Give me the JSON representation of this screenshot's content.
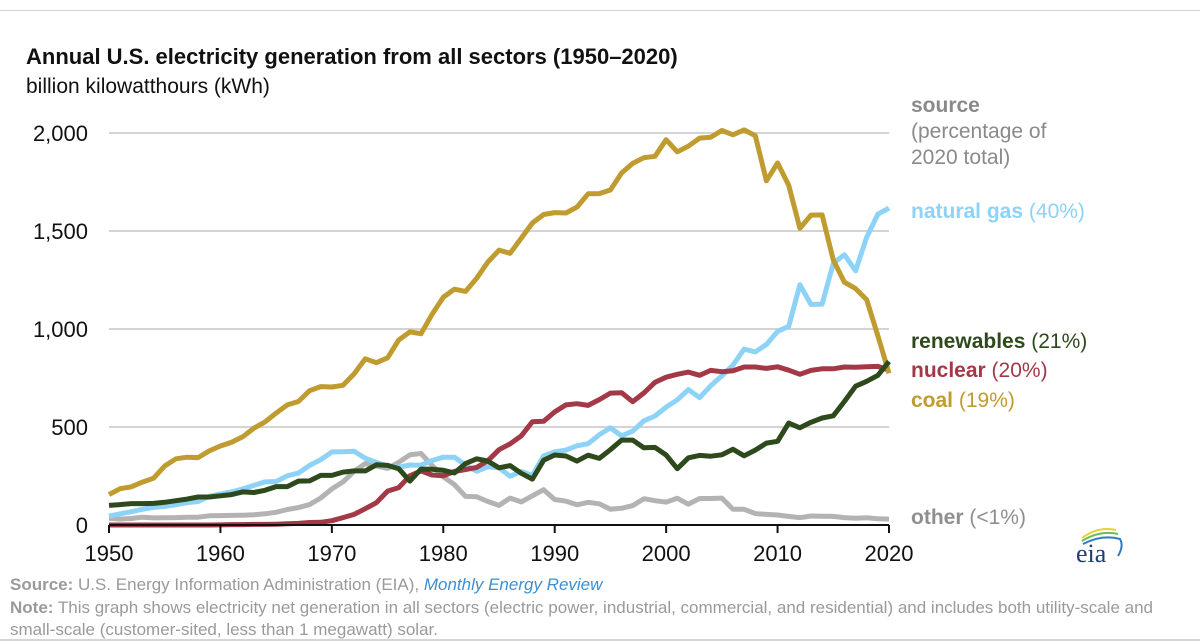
{
  "chart_data": {
    "type": "line",
    "title": "Annual U.S. electricity generation from all sectors (1950–2020)",
    "ylabel": "billion kilowatthours (kWh)",
    "xlabel": "",
    "xlim": [
      1950,
      2020
    ],
    "ylim": [
      0,
      2000
    ],
    "x_ticks": [
      1950,
      1960,
      1970,
      1980,
      1990,
      2000,
      2010,
      2020
    ],
    "y_ticks": [
      0,
      500,
      1000,
      1500,
      2000
    ],
    "y_tick_labels": [
      "0",
      "500",
      "1,000",
      "1,500",
      "2,000"
    ],
    "grid": true,
    "legend_title": "source",
    "legend_subtitle_1": "(percentage of",
    "legend_subtitle_2": "2020 total)",
    "legend_placement": "right",
    "series": [
      {
        "name": "coal",
        "share": "(19%)",
        "color": "#bf9b30",
        "values": [
          155,
          185,
          195,
          219,
          239,
          301,
          338,
          346,
          344,
          378,
          403,
          422,
          450,
          494,
          526,
          571,
          613,
          630,
          685,
          706,
          704,
          713,
          771,
          848,
          828,
          853,
          944,
          985,
          976,
          1075,
          1162,
          1203,
          1192,
          1259,
          1342,
          1402,
          1386,
          1464,
          1541,
          1584,
          1594,
          1592,
          1622,
          1690,
          1691,
          1709,
          1796,
          1845,
          1874,
          1881,
          1966,
          1904,
          1933,
          1974,
          1978,
          2013,
          1991,
          2016,
          1986,
          1756,
          1847,
          1733,
          1514,
          1581,
          1582,
          1352,
          1239,
          1206,
          1149,
          965,
          774
        ]
      },
      {
        "name": "natural gas",
        "share": "(40%)",
        "color": "#8dd3f7",
        "values": [
          45,
          57,
          68,
          80,
          90,
          95,
          104,
          114,
          120,
          147,
          158,
          169,
          184,
          202,
          220,
          222,
          251,
          265,
          304,
          333,
          373,
          374,
          376,
          341,
          320,
          300,
          295,
          306,
          305,
          329,
          346,
          346,
          305,
          274,
          297,
          292,
          249,
          273,
          253,
          352,
          373,
          382,
          404,
          415,
          460,
          496,
          455,
          479,
          531,
          556,
          601,
          639,
          691,
          650,
          710,
          761,
          816,
          897,
          883,
          921,
          988,
          1014,
          1226,
          1125,
          1127,
          1335,
          1379,
          1297,
          1469,
          1586,
          1617
        ]
      },
      {
        "name": "nuclear",
        "share": "(20%)",
        "color": "#a33847",
        "values": [
          0,
          0,
          0,
          0,
          0,
          0,
          0,
          0,
          0,
          0.2,
          0.5,
          2,
          2,
          3,
          3,
          4,
          6,
          8,
          13,
          14,
          22,
          38,
          54,
          83,
          114,
          173,
          191,
          251,
          276,
          255,
          251,
          273,
          283,
          294,
          328,
          384,
          414,
          455,
          527,
          529,
          577,
          613,
          619,
          610,
          640,
          673,
          675,
          629,
          674,
          728,
          754,
          769,
          780,
          764,
          789,
          782,
          787,
          806,
          806,
          799,
          807,
          790,
          769,
          789,
          797,
          797,
          806,
          805,
          807,
          809,
          790
        ]
      },
      {
        "name": "renewables",
        "share": "(21%)",
        "color": "#2e4a1c",
        "values": [
          100,
          104,
          109,
          109,
          110,
          116,
          124,
          132,
          143,
          143,
          149,
          155,
          169,
          166,
          177,
          196,
          196,
          224,
          225,
          253,
          253,
          270,
          276,
          276,
          307,
          304,
          287,
          224,
          285,
          284,
          279,
          266,
          314,
          338,
          326,
          292,
          303,
          264,
          234,
          330,
          357,
          352,
          326,
          356,
          340,
          384,
          433,
          433,
          394,
          396,
          357,
          287,
          343,
          355,
          351,
          358,
          386,
          353,
          382,
          418,
          427,
          520,
          496,
          524,
          546,
          557,
          630,
          708,
          733,
          764,
          834
        ]
      },
      {
        "name": "other",
        "share": "(<1%)",
        "color": "#b3b3b3",
        "values": [
          34,
          30,
          33,
          40,
          36,
          37,
          38,
          40,
          40,
          47,
          48,
          49,
          50,
          52,
          57,
          65,
          79,
          89,
          104,
          138,
          184,
          220,
          274,
          314,
          301,
          289,
          320,
          358,
          365,
          304,
          246,
          206,
          146,
          144,
          120,
          100,
          137,
          118,
          149,
          180,
          130,
          122,
          103,
          116,
          108,
          80,
          85,
          99,
          134,
          124,
          117,
          136,
          106,
          135,
          135,
          137,
          80,
          80,
          58,
          54,
          51,
          44,
          37,
          46,
          45,
          44,
          38,
          34,
          37,
          32,
          30
        ]
      }
    ]
  },
  "footer": {
    "source_label": "Source:",
    "source_text": " U.S. Energy Information Administration (EIA), ",
    "source_link": "Monthly Energy Review",
    "note_label": "Note:",
    "note_text": " This graph shows electricity net generation in all sectors (electric power, industrial, commercial, and residential) and includes both utility-scale and small-scale (customer-sited, less than 1 megawatt) solar."
  },
  "logo": {
    "text": "eia"
  },
  "colors": {
    "grid": "#d4d4d4",
    "axis": "#111111",
    "legend_title": "#8a8a8a"
  }
}
